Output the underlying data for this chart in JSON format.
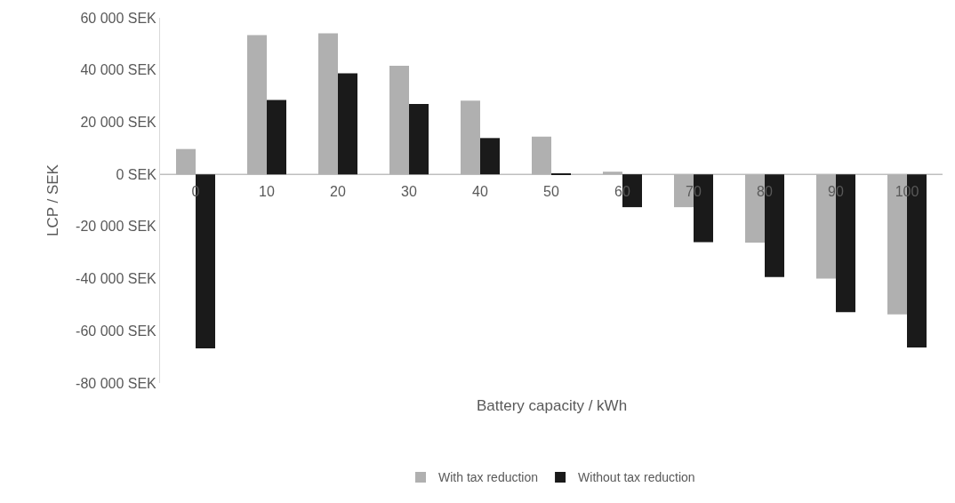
{
  "chart_data": {
    "type": "bar",
    "xlabel": "Battery capacity / kWh",
    "ylabel": "LCP / SEK",
    "categories": [
      "0",
      "10",
      "20",
      "30",
      "40",
      "50",
      "60",
      "70",
      "80",
      "90",
      "100"
    ],
    "series": [
      {
        "name": "With tax reduction",
        "color": "#b0b0b0",
        "values": [
          9700,
          53400,
          54000,
          41600,
          28200,
          14400,
          1000,
          -12600,
          -26200,
          -40000,
          -53700
        ]
      },
      {
        "name": "Without tax reduction",
        "color": "#1a1a1a",
        "values": [
          -66700,
          28500,
          38700,
          27000,
          13900,
          300,
          -12600,
          -26000,
          -39400,
          -52800,
          -66400
        ]
      }
    ],
    "ylim": [
      -80000,
      60000
    ],
    "yticks": [
      {
        "value": -80000,
        "label": "-80 000 SEK"
      },
      {
        "value": -60000,
        "label": "-60 000 SEK"
      },
      {
        "value": -40000,
        "label": "-40 000 SEK"
      },
      {
        "value": -20000,
        "label": "-20 000 SEK"
      },
      {
        "value": 0,
        "label": "0 SEK"
      },
      {
        "value": 20000,
        "label": "20 000 SEK"
      },
      {
        "value": 40000,
        "label": "40 000 SEK"
      },
      {
        "value": 60000,
        "label": "60 000 SEK"
      }
    ],
    "legend": "bottom"
  }
}
